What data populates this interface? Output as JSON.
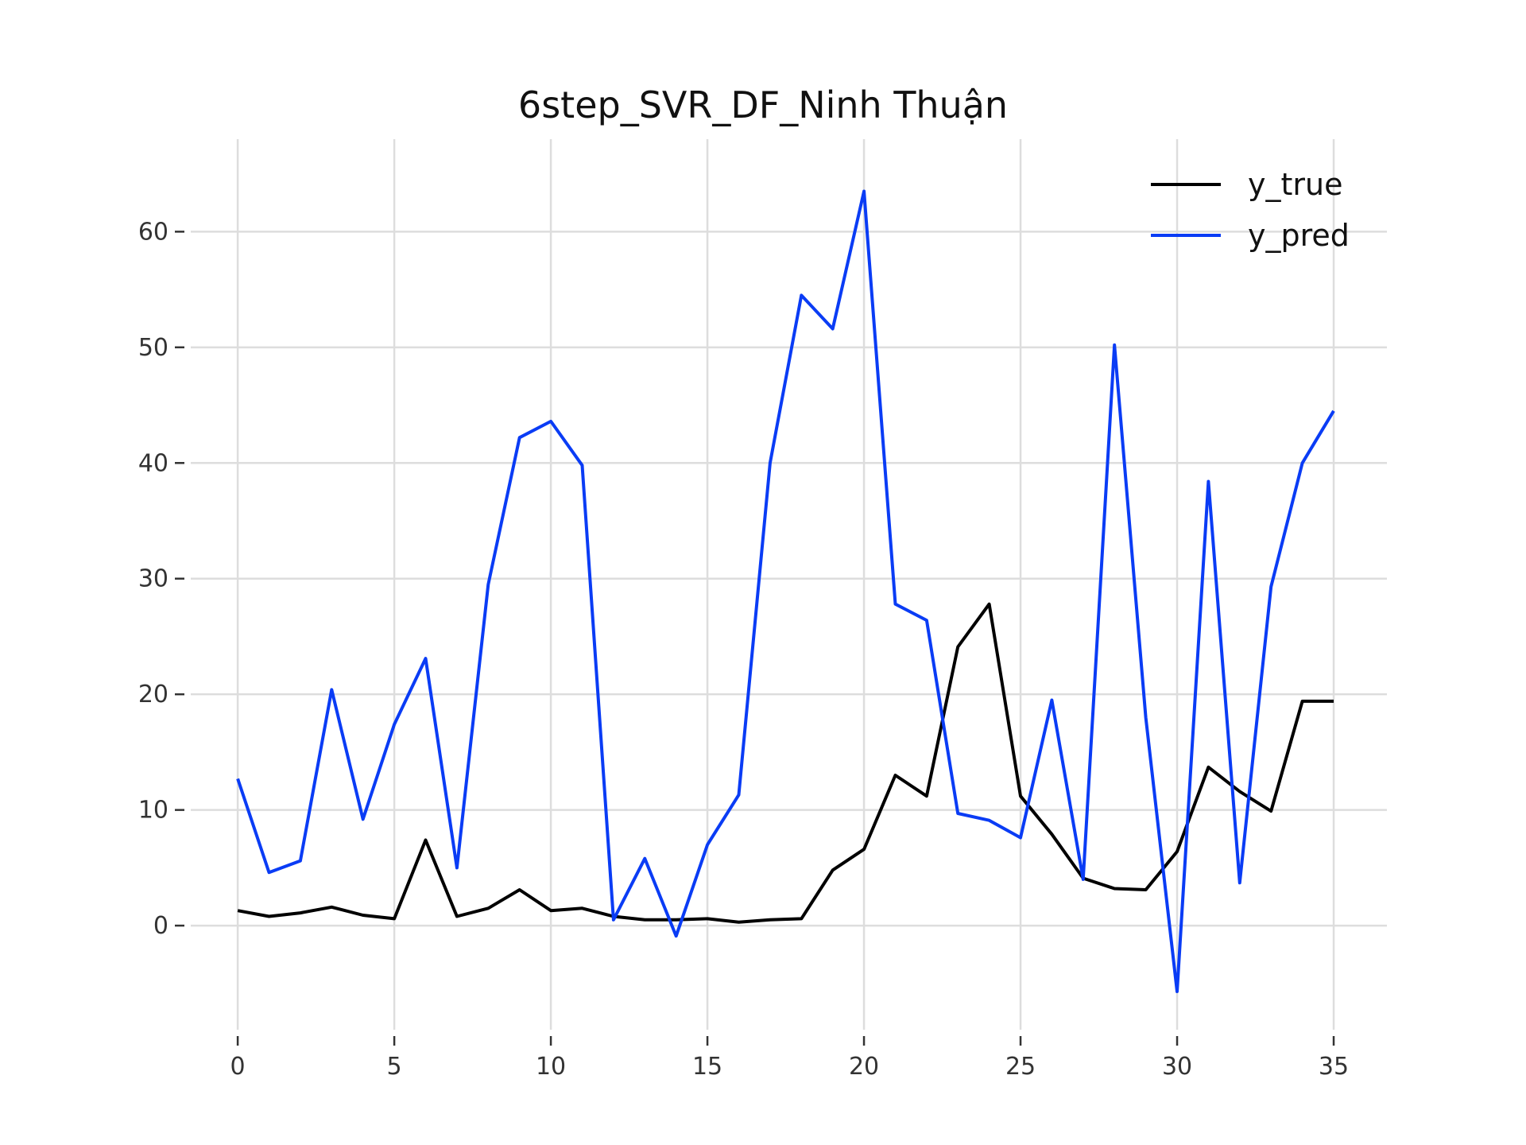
{
  "chart_data": {
    "type": "line",
    "title": "6step_SVR_DF_Ninh Thuận",
    "xlabel": "",
    "ylabel": "",
    "x": [
      0,
      1,
      2,
      3,
      4,
      5,
      6,
      7,
      8,
      9,
      10,
      11,
      12,
      13,
      14,
      15,
      16,
      17,
      18,
      19,
      20,
      21,
      22,
      23,
      24,
      25,
      26,
      27,
      28,
      29,
      30,
      31,
      32,
      33,
      34,
      35
    ],
    "xlim": [
      -1.5,
      36.7
    ],
    "ylim": [
      -9,
      68
    ],
    "xticks": [
      0,
      5,
      10,
      15,
      20,
      25,
      30,
      35
    ],
    "xtick_labels": [
      "0",
      "5",
      "10",
      "15",
      "20",
      "25",
      "30",
      "35"
    ],
    "yticks": [
      0,
      10,
      20,
      30,
      40,
      50,
      60
    ],
    "ytick_labels": [
      "0",
      "10",
      "20",
      "30",
      "40",
      "50",
      "60"
    ],
    "grid": true,
    "legend_position": "top-right",
    "series": [
      {
        "name": "y_true",
        "color": "#000000",
        "values": [
          1.3,
          0.8,
          1.1,
          1.6,
          0.9,
          0.6,
          7.4,
          0.8,
          1.5,
          3.1,
          1.3,
          1.5,
          0.8,
          0.5,
          0.5,
          0.6,
          0.3,
          0.5,
          0.6,
          4.8,
          6.6,
          13.0,
          11.2,
          24.1,
          27.8,
          11.2,
          7.9,
          4.1,
          3.2,
          3.1,
          6.4,
          13.7,
          11.6,
          9.9,
          19.4,
          19.4
        ]
      },
      {
        "name": "y_pred",
        "color": "#0a3cf5",
        "values": [
          12.7,
          4.6,
          5.6,
          20.4,
          9.2,
          17.4,
          23.1,
          5.0,
          29.5,
          42.2,
          43.6,
          39.8,
          0.5,
          5.8,
          -0.9,
          7.0,
          11.3,
          40.0,
          54.5,
          51.6,
          63.5,
          27.8,
          26.4,
          9.7,
          9.1,
          7.6,
          19.5,
          4.0,
          50.2,
          18.0,
          -5.7,
          38.4,
          3.7,
          29.3,
          40.0,
          44.5
        ]
      }
    ]
  }
}
